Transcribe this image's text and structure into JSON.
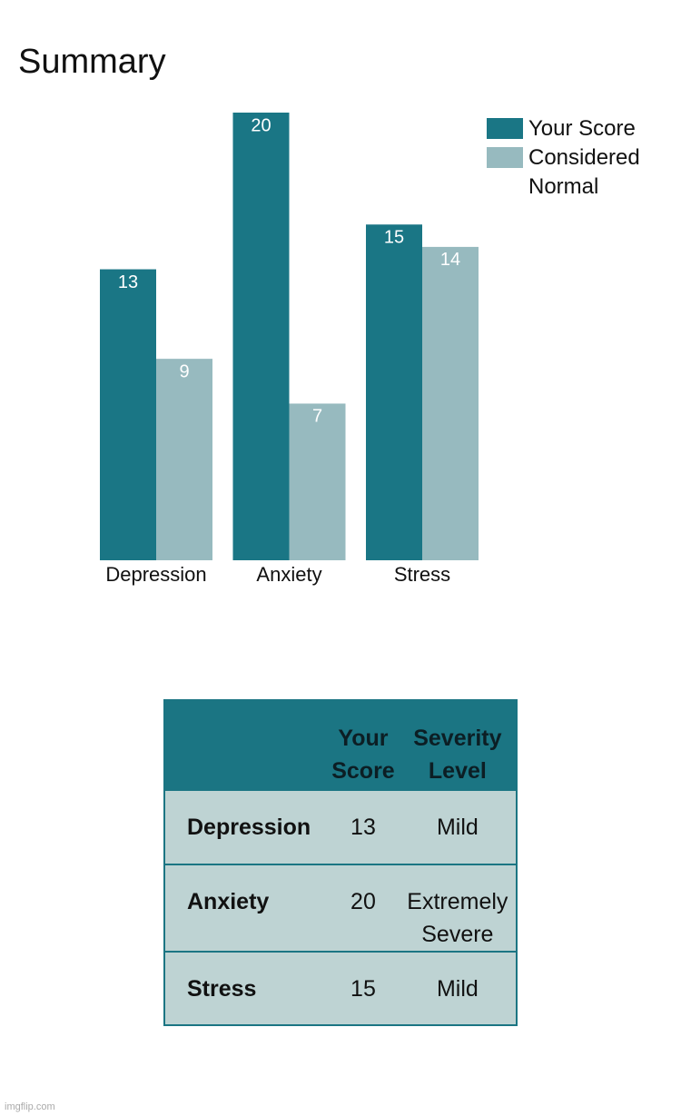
{
  "chart_data": {
    "type": "bar",
    "title": "Summary",
    "categories": [
      "Depression",
      "Anxiety",
      "Stress"
    ],
    "series": [
      {
        "name": "Your Score",
        "color": "#1a7685",
        "values": [
          13,
          20,
          15
        ]
      },
      {
        "name": "Considered Normal",
        "color": "#97babf",
        "values": [
          9,
          7,
          14
        ]
      }
    ],
    "ylim": [
      0,
      20
    ]
  },
  "table": {
    "columns": [
      "Your Score",
      "Severity Level"
    ],
    "rows": [
      [
        "Depression",
        13,
        "Mild"
      ],
      [
        "Anxiety",
        20,
        "Extremely Severe"
      ],
      [
        "Stress",
        15,
        "Mild"
      ]
    ]
  },
  "watermark": "imgflip.com"
}
